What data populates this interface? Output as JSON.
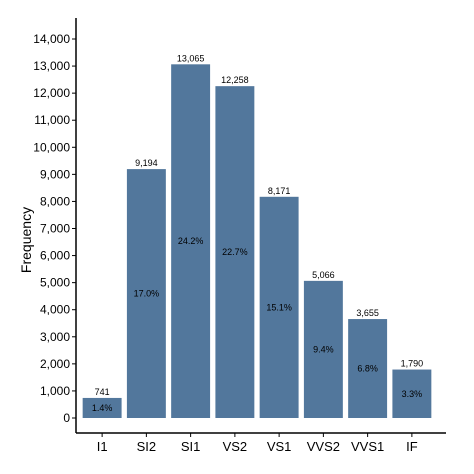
{
  "chart_data": {
    "type": "bar",
    "categories": [
      "I1",
      "SI2",
      "SI1",
      "VS2",
      "VS1",
      "VVS2",
      "VVS1",
      "IF"
    ],
    "values": [
      741,
      9194,
      13065,
      12258,
      8171,
      5066,
      3655,
      1790
    ],
    "value_labels": [
      "741",
      "9,194",
      "13,065",
      "12,258",
      "8,171",
      "5,066",
      "3,655",
      "1,790"
    ],
    "percent_labels": [
      "1.4%",
      "17.0%",
      "24.2%",
      "22.7%",
      "15.1%",
      "9.4%",
      "6.8%",
      "3.3%"
    ],
    "ylabel": "Frequency",
    "ylim": [
      0,
      14500
    ],
    "yticks": [
      0,
      1000,
      2000,
      3000,
      4000,
      5000,
      6000,
      7000,
      8000,
      9000,
      10000,
      11000,
      12000,
      13000,
      14000
    ],
    "ytick_labels": [
      "0",
      "1,000",
      "2,000",
      "3,000",
      "4,000",
      "5,000",
      "6,000",
      "7,000",
      "8,000",
      "9,000",
      "10,000",
      "11,000",
      "12,000",
      "13,000",
      "14,000"
    ],
    "bar_color": "#52779c",
    "grid": false,
    "legend": "none"
  }
}
